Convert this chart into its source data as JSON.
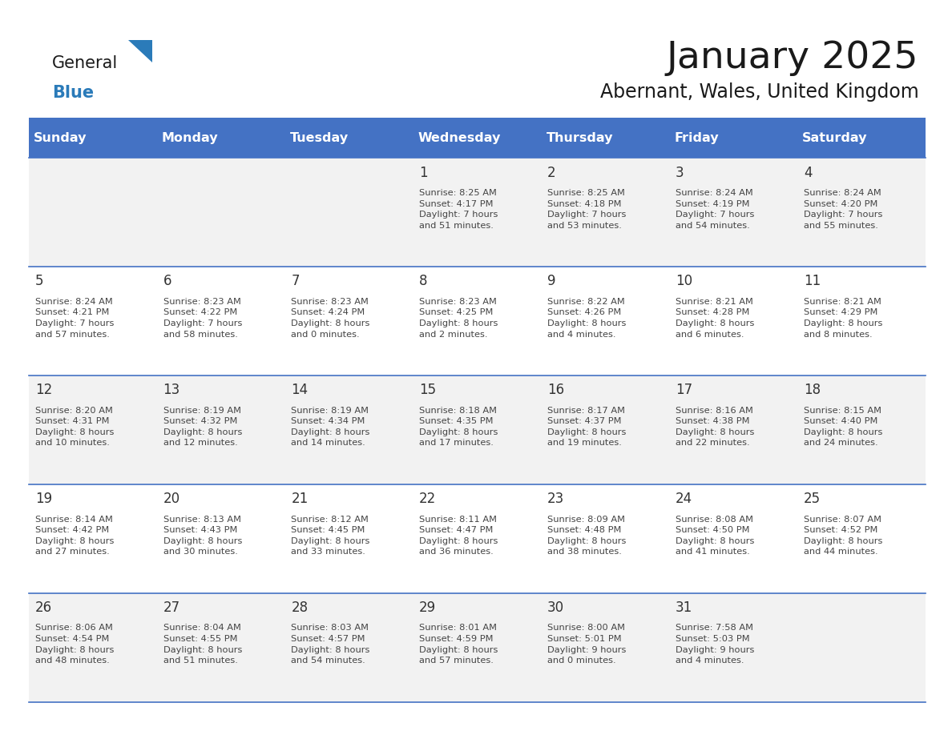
{
  "title": "January 2025",
  "subtitle": "Abernant, Wales, United Kingdom",
  "header_bg": "#4472C4",
  "header_text_color": "#FFFFFF",
  "days_of_week": [
    "Sunday",
    "Monday",
    "Tuesday",
    "Wednesday",
    "Thursday",
    "Friday",
    "Saturday"
  ],
  "row_bg_odd": "#F2F2F2",
  "row_bg_even": "#FFFFFF",
  "cell_text_color": "#444444",
  "day_num_color": "#333333",
  "grid_line_color": "#4472C4",
  "logo_general_color": "#1a1a1a",
  "logo_blue_color": "#2B7BB9",
  "calendar": [
    [
      {
        "day": null,
        "info": null
      },
      {
        "day": null,
        "info": null
      },
      {
        "day": null,
        "info": null
      },
      {
        "day": 1,
        "info": "Sunrise: 8:25 AM\nSunset: 4:17 PM\nDaylight: 7 hours\nand 51 minutes."
      },
      {
        "day": 2,
        "info": "Sunrise: 8:25 AM\nSunset: 4:18 PM\nDaylight: 7 hours\nand 53 minutes."
      },
      {
        "day": 3,
        "info": "Sunrise: 8:24 AM\nSunset: 4:19 PM\nDaylight: 7 hours\nand 54 minutes."
      },
      {
        "day": 4,
        "info": "Sunrise: 8:24 AM\nSunset: 4:20 PM\nDaylight: 7 hours\nand 55 minutes."
      }
    ],
    [
      {
        "day": 5,
        "info": "Sunrise: 8:24 AM\nSunset: 4:21 PM\nDaylight: 7 hours\nand 57 minutes."
      },
      {
        "day": 6,
        "info": "Sunrise: 8:23 AM\nSunset: 4:22 PM\nDaylight: 7 hours\nand 58 minutes."
      },
      {
        "day": 7,
        "info": "Sunrise: 8:23 AM\nSunset: 4:24 PM\nDaylight: 8 hours\nand 0 minutes."
      },
      {
        "day": 8,
        "info": "Sunrise: 8:23 AM\nSunset: 4:25 PM\nDaylight: 8 hours\nand 2 minutes."
      },
      {
        "day": 9,
        "info": "Sunrise: 8:22 AM\nSunset: 4:26 PM\nDaylight: 8 hours\nand 4 minutes."
      },
      {
        "day": 10,
        "info": "Sunrise: 8:21 AM\nSunset: 4:28 PM\nDaylight: 8 hours\nand 6 minutes."
      },
      {
        "day": 11,
        "info": "Sunrise: 8:21 AM\nSunset: 4:29 PM\nDaylight: 8 hours\nand 8 minutes."
      }
    ],
    [
      {
        "day": 12,
        "info": "Sunrise: 8:20 AM\nSunset: 4:31 PM\nDaylight: 8 hours\nand 10 minutes."
      },
      {
        "day": 13,
        "info": "Sunrise: 8:19 AM\nSunset: 4:32 PM\nDaylight: 8 hours\nand 12 minutes."
      },
      {
        "day": 14,
        "info": "Sunrise: 8:19 AM\nSunset: 4:34 PM\nDaylight: 8 hours\nand 14 minutes."
      },
      {
        "day": 15,
        "info": "Sunrise: 8:18 AM\nSunset: 4:35 PM\nDaylight: 8 hours\nand 17 minutes."
      },
      {
        "day": 16,
        "info": "Sunrise: 8:17 AM\nSunset: 4:37 PM\nDaylight: 8 hours\nand 19 minutes."
      },
      {
        "day": 17,
        "info": "Sunrise: 8:16 AM\nSunset: 4:38 PM\nDaylight: 8 hours\nand 22 minutes."
      },
      {
        "day": 18,
        "info": "Sunrise: 8:15 AM\nSunset: 4:40 PM\nDaylight: 8 hours\nand 24 minutes."
      }
    ],
    [
      {
        "day": 19,
        "info": "Sunrise: 8:14 AM\nSunset: 4:42 PM\nDaylight: 8 hours\nand 27 minutes."
      },
      {
        "day": 20,
        "info": "Sunrise: 8:13 AM\nSunset: 4:43 PM\nDaylight: 8 hours\nand 30 minutes."
      },
      {
        "day": 21,
        "info": "Sunrise: 8:12 AM\nSunset: 4:45 PM\nDaylight: 8 hours\nand 33 minutes."
      },
      {
        "day": 22,
        "info": "Sunrise: 8:11 AM\nSunset: 4:47 PM\nDaylight: 8 hours\nand 36 minutes."
      },
      {
        "day": 23,
        "info": "Sunrise: 8:09 AM\nSunset: 4:48 PM\nDaylight: 8 hours\nand 38 minutes."
      },
      {
        "day": 24,
        "info": "Sunrise: 8:08 AM\nSunset: 4:50 PM\nDaylight: 8 hours\nand 41 minutes."
      },
      {
        "day": 25,
        "info": "Sunrise: 8:07 AM\nSunset: 4:52 PM\nDaylight: 8 hours\nand 44 minutes."
      }
    ],
    [
      {
        "day": 26,
        "info": "Sunrise: 8:06 AM\nSunset: 4:54 PM\nDaylight: 8 hours\nand 48 minutes."
      },
      {
        "day": 27,
        "info": "Sunrise: 8:04 AM\nSunset: 4:55 PM\nDaylight: 8 hours\nand 51 minutes."
      },
      {
        "day": 28,
        "info": "Sunrise: 8:03 AM\nSunset: 4:57 PM\nDaylight: 8 hours\nand 54 minutes."
      },
      {
        "day": 29,
        "info": "Sunrise: 8:01 AM\nSunset: 4:59 PM\nDaylight: 8 hours\nand 57 minutes."
      },
      {
        "day": 30,
        "info": "Sunrise: 8:00 AM\nSunset: 5:01 PM\nDaylight: 9 hours\nand 0 minutes."
      },
      {
        "day": 31,
        "info": "Sunrise: 7:58 AM\nSunset: 5:03 PM\nDaylight: 9 hours\nand 4 minutes."
      },
      {
        "day": null,
        "info": null
      }
    ]
  ]
}
